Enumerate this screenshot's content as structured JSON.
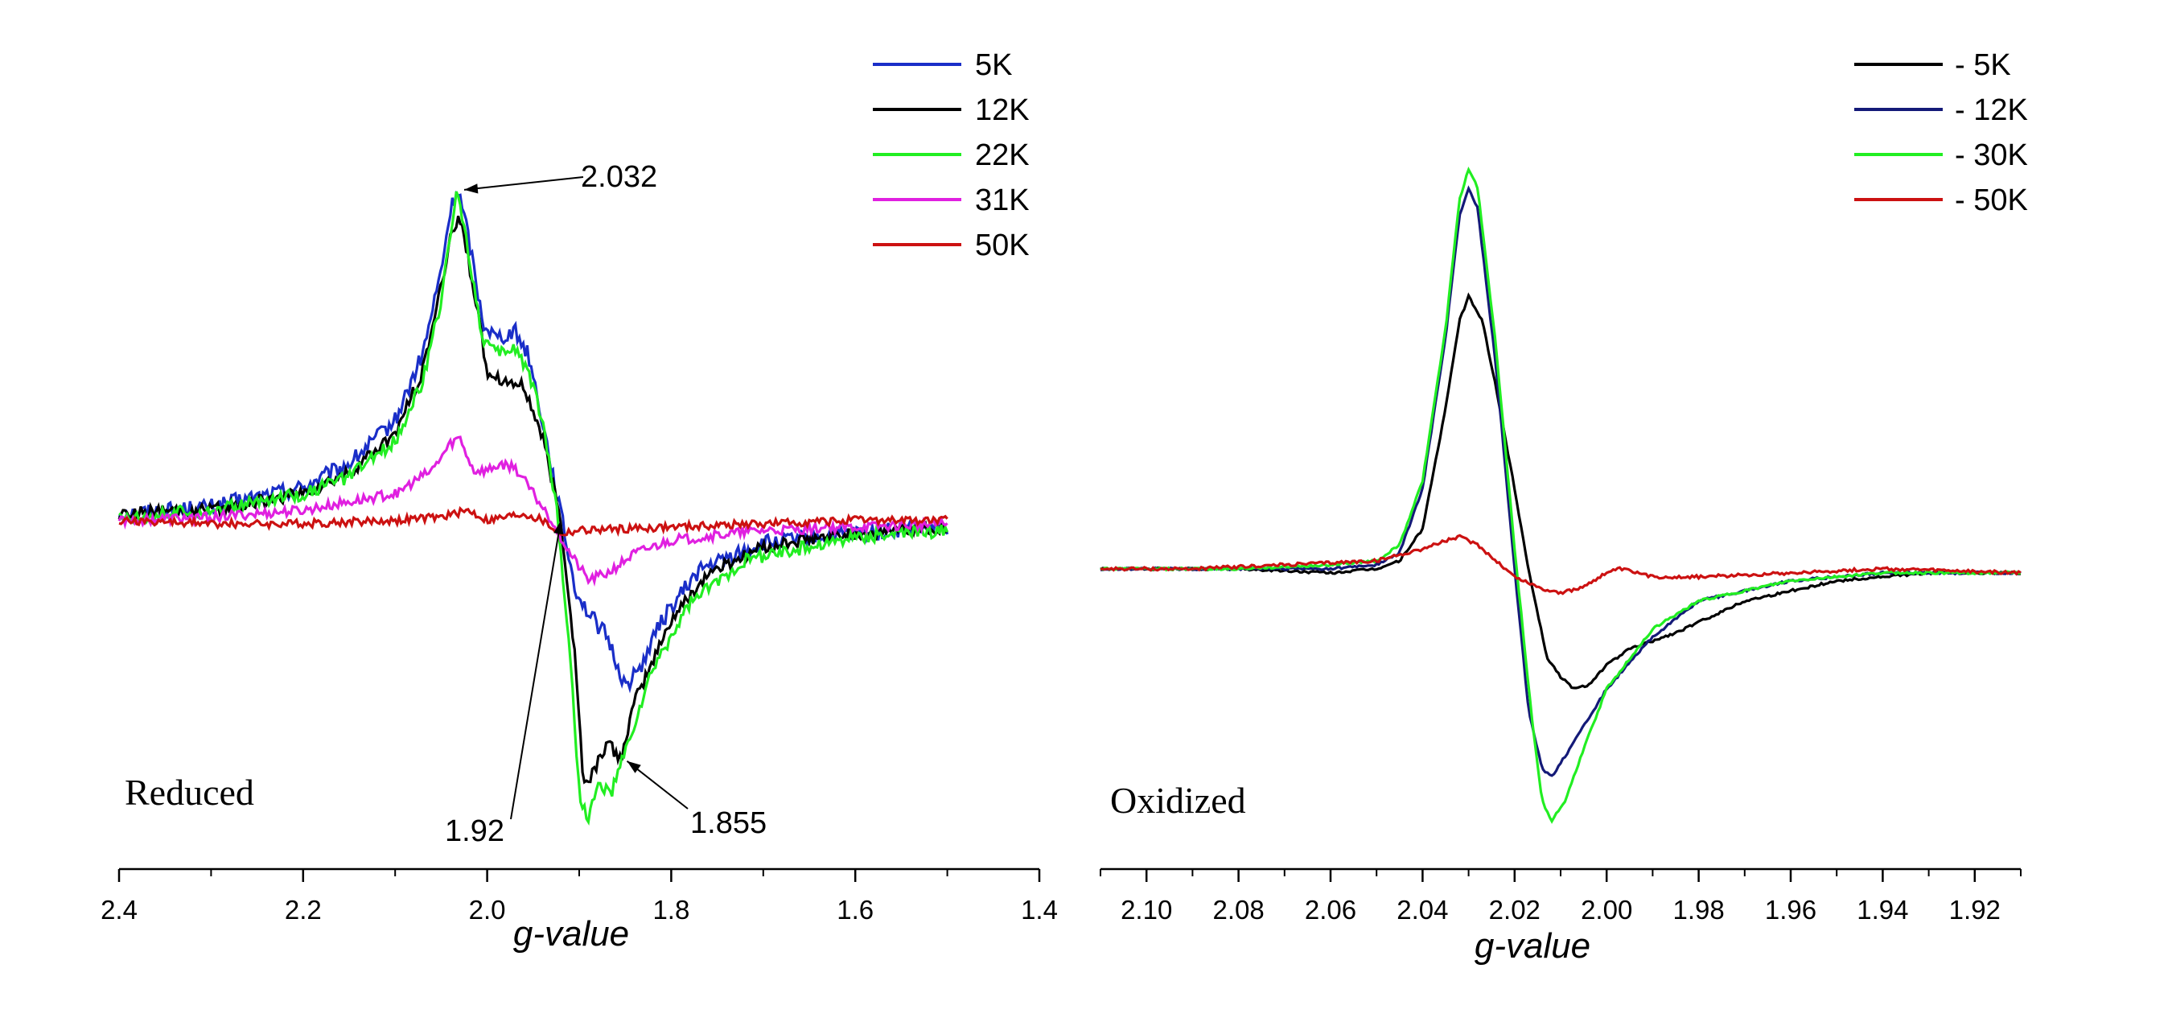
{
  "chart_data": [
    {
      "type": "line",
      "panel_label": "Reduced",
      "xlabel": "g-value",
      "ylabel": "",
      "xlim": [
        2.4,
        1.4
      ],
      "x_reversed": true,
      "xticks": [
        {
          "value": 2.4,
          "label": "2.4"
        },
        {
          "value": 2.2,
          "label": "2.2"
        },
        {
          "value": 2.0,
          "label": "2.0"
        },
        {
          "value": 1.8,
          "label": "1.8"
        },
        {
          "value": 1.6,
          "label": "1.6"
        },
        {
          "value": 1.4,
          "label": "1.4"
        }
      ],
      "ylim": [
        -1.05,
        1.3
      ],
      "grid": false,
      "legend_position": "top-right",
      "series": [
        {
          "name": "5K",
          "color": "#1a2ec8",
          "noise": 0.025,
          "points": [
            [
              2.4,
              0.02
            ],
            [
              2.3,
              0.04
            ],
            [
              2.2,
              0.1
            ],
            [
              2.15,
              0.17
            ],
            [
              2.1,
              0.3
            ],
            [
              2.07,
              0.5
            ],
            [
              2.05,
              0.75
            ],
            [
              2.04,
              0.93
            ],
            [
              2.032,
              1.0
            ],
            [
              2.02,
              0.85
            ],
            [
              2.005,
              0.6
            ],
            [
              1.99,
              0.55
            ],
            [
              1.97,
              0.57
            ],
            [
              1.955,
              0.5
            ],
            [
              1.94,
              0.3
            ],
            [
              1.92,
              0.02
            ],
            [
              1.905,
              -0.2
            ],
            [
              1.89,
              -0.28
            ],
            [
              1.87,
              -0.35
            ],
            [
              1.85,
              -0.5
            ],
            [
              1.835,
              -0.45
            ],
            [
              1.81,
              -0.3
            ],
            [
              1.77,
              -0.15
            ],
            [
              1.7,
              -0.07
            ],
            [
              1.6,
              -0.04
            ],
            [
              1.5,
              -0.02
            ]
          ]
        },
        {
          "name": "12K",
          "color": "#000000",
          "noise": 0.02,
          "points": [
            [
              2.4,
              0.02
            ],
            [
              2.3,
              0.03
            ],
            [
              2.2,
              0.08
            ],
            [
              2.15,
              0.14
            ],
            [
              2.1,
              0.26
            ],
            [
              2.07,
              0.45
            ],
            [
              2.05,
              0.7
            ],
            [
              2.04,
              0.85
            ],
            [
              2.03,
              0.92
            ],
            [
              2.015,
              0.7
            ],
            [
              2.0,
              0.45
            ],
            [
              1.98,
              0.42
            ],
            [
              1.96,
              0.4
            ],
            [
              1.94,
              0.25
            ],
            [
              1.92,
              0.0
            ],
            [
              1.905,
              -0.4
            ],
            [
              1.895,
              -0.8
            ],
            [
              1.885,
              -0.76
            ],
            [
              1.87,
              -0.67
            ],
            [
              1.855,
              -0.72
            ],
            [
              1.84,
              -0.55
            ],
            [
              1.8,
              -0.3
            ],
            [
              1.76,
              -0.16
            ],
            [
              1.7,
              -0.08
            ],
            [
              1.6,
              -0.04
            ],
            [
              1.5,
              -0.02
            ]
          ]
        },
        {
          "name": "22K",
          "color": "#22ee22",
          "noise": 0.02,
          "points": [
            [
              2.4,
              0.01
            ],
            [
              2.3,
              0.03
            ],
            [
              2.2,
              0.08
            ],
            [
              2.15,
              0.13
            ],
            [
              2.1,
              0.24
            ],
            [
              2.07,
              0.42
            ],
            [
              2.05,
              0.66
            ],
            [
              2.04,
              0.86
            ],
            [
              2.032,
              1.0
            ],
            [
              2.02,
              0.8
            ],
            [
              2.005,
              0.55
            ],
            [
              1.99,
              0.5
            ],
            [
              1.97,
              0.52
            ],
            [
              1.955,
              0.45
            ],
            [
              1.94,
              0.3
            ],
            [
              1.925,
              0.05
            ],
            [
              1.91,
              -0.4
            ],
            [
              1.9,
              -0.82
            ],
            [
              1.89,
              -0.9
            ],
            [
              1.88,
              -0.8
            ],
            [
              1.865,
              -0.82
            ],
            [
              1.85,
              -0.7
            ],
            [
              1.82,
              -0.45
            ],
            [
              1.78,
              -0.25
            ],
            [
              1.72,
              -0.12
            ],
            [
              1.6,
              -0.05
            ],
            [
              1.5,
              -0.03
            ]
          ]
        },
        {
          "name": "31K",
          "color": "#e020e0",
          "noise": 0.015,
          "points": [
            [
              2.4,
              0.0
            ],
            [
              2.3,
              0.01
            ],
            [
              2.2,
              0.03
            ],
            [
              2.1,
              0.08
            ],
            [
              2.06,
              0.15
            ],
            [
              2.04,
              0.23
            ],
            [
              2.03,
              0.25
            ],
            [
              2.015,
              0.15
            ],
            [
              2.0,
              0.15
            ],
            [
              1.985,
              0.17
            ],
            [
              1.97,
              0.16
            ],
            [
              1.95,
              0.08
            ],
            [
              1.93,
              0.0
            ],
            [
              1.91,
              -0.1
            ],
            [
              1.89,
              -0.18
            ],
            [
              1.87,
              -0.16
            ],
            [
              1.84,
              -0.1
            ],
            [
              1.8,
              -0.06
            ],
            [
              1.7,
              -0.03
            ],
            [
              1.6,
              -0.02
            ],
            [
              1.5,
              -0.01
            ]
          ]
        },
        {
          "name": "50K",
          "color": "#cc1111",
          "noise": 0.012,
          "points": [
            [
              2.4,
              0.0
            ],
            [
              2.3,
              -0.01
            ],
            [
              2.2,
              -0.01
            ],
            [
              2.1,
              0.0
            ],
            [
              2.05,
              0.01
            ],
            [
              2.02,
              0.03
            ],
            [
              2.0,
              0.0
            ],
            [
              1.98,
              0.01
            ],
            [
              1.96,
              0.02
            ],
            [
              1.94,
              0.0
            ],
            [
              1.92,
              -0.04
            ],
            [
              1.9,
              -0.03
            ],
            [
              1.8,
              -0.02
            ],
            [
              1.7,
              -0.01
            ],
            [
              1.6,
              0.0
            ],
            [
              1.5,
              0.0
            ]
          ]
        }
      ],
      "annotations": [
        {
          "label": "2.032",
          "x": 2.032,
          "y": 1.0
        },
        {
          "label": "1.92",
          "x": 1.92,
          "y": 0.0
        },
        {
          "label": "1.855",
          "x": 1.855,
          "y": -0.72
        }
      ]
    },
    {
      "type": "line",
      "panel_label": "Oxidized",
      "xlabel": "g-value",
      "ylabel": "",
      "xlim": [
        2.11,
        1.91
      ],
      "x_reversed": true,
      "xticks": [
        {
          "value": 2.1,
          "label": "2.10"
        },
        {
          "value": 2.08,
          "label": "2.08"
        },
        {
          "value": 2.06,
          "label": "2.06"
        },
        {
          "value": 2.04,
          "label": "2.04"
        },
        {
          "value": 2.02,
          "label": "2.02"
        },
        {
          "value": 2.0,
          "label": "2.00"
        },
        {
          "value": 1.98,
          "label": "1.98"
        },
        {
          "value": 1.96,
          "label": "1.96"
        },
        {
          "value": 1.94,
          "label": "1.94"
        },
        {
          "value": 1.92,
          "label": "1.92"
        }
      ],
      "ylim": [
        -0.75,
        1.2
      ],
      "grid": false,
      "legend_position": "top-right",
      "series": [
        {
          "name": "- 5K",
          "color": "#000000",
          "noise": 0.003,
          "points": [
            [
              2.11,
              0.0
            ],
            [
              2.08,
              0.0
            ],
            [
              2.06,
              -0.01
            ],
            [
              2.05,
              0.0
            ],
            [
              2.045,
              0.02
            ],
            [
              2.04,
              0.1
            ],
            [
              2.035,
              0.4
            ],
            [
              2.032,
              0.62
            ],
            [
              2.03,
              0.68
            ],
            [
              2.027,
              0.62
            ],
            [
              2.024,
              0.45
            ],
            [
              2.02,
              0.2
            ],
            [
              2.017,
              0.0
            ],
            [
              2.013,
              -0.22
            ],
            [
              2.01,
              -0.27
            ],
            [
              2.007,
              -0.3
            ],
            [
              2.004,
              -0.29
            ],
            [
              2.0,
              -0.24
            ],
            [
              1.995,
              -0.2
            ],
            [
              1.985,
              -0.16
            ],
            [
              1.97,
              -0.08
            ],
            [
              1.95,
              -0.03
            ],
            [
              1.93,
              -0.01
            ],
            [
              1.91,
              -0.01
            ]
          ]
        },
        {
          "name": "- 12K",
          "color": "#141a78",
          "noise": 0.003,
          "points": [
            [
              2.11,
              0.0
            ],
            [
              2.08,
              0.0
            ],
            [
              2.06,
              0.0
            ],
            [
              2.05,
              0.01
            ],
            [
              2.045,
              0.04
            ],
            [
              2.04,
              0.2
            ],
            [
              2.035,
              0.58
            ],
            [
              2.032,
              0.88
            ],
            [
              2.03,
              0.95
            ],
            [
              2.028,
              0.9
            ],
            [
              2.024,
              0.5
            ],
            [
              2.02,
              0.0
            ],
            [
              2.017,
              -0.35
            ],
            [
              2.014,
              -0.5
            ],
            [
              2.012,
              -0.52
            ],
            [
              2.008,
              -0.45
            ],
            [
              2.0,
              -0.3
            ],
            [
              1.99,
              -0.17
            ],
            [
              1.98,
              -0.08
            ],
            [
              1.96,
              -0.03
            ],
            [
              1.94,
              -0.01
            ],
            [
              1.91,
              -0.01
            ]
          ]
        },
        {
          "name": "- 30K",
          "color": "#22ee22",
          "noise": 0.003,
          "points": [
            [
              2.11,
              0.0
            ],
            [
              2.08,
              0.0
            ],
            [
              2.06,
              0.01
            ],
            [
              2.05,
              0.02
            ],
            [
              2.045,
              0.06
            ],
            [
              2.04,
              0.22
            ],
            [
              2.035,
              0.6
            ],
            [
              2.032,
              0.92
            ],
            [
              2.03,
              1.0
            ],
            [
              2.028,
              0.95
            ],
            [
              2.024,
              0.55
            ],
            [
              2.02,
              0.05
            ],
            [
              2.016,
              -0.4
            ],
            [
              2.014,
              -0.58
            ],
            [
              2.012,
              -0.63
            ],
            [
              2.009,
              -0.58
            ],
            [
              2.005,
              -0.45
            ],
            [
              2.0,
              -0.3
            ],
            [
              1.99,
              -0.15
            ],
            [
              1.98,
              -0.08
            ],
            [
              1.96,
              -0.03
            ],
            [
              1.94,
              -0.01
            ],
            [
              1.91,
              -0.01
            ]
          ]
        },
        {
          "name": "- 50K",
          "color": "#cc1111",
          "noise": 0.004,
          "points": [
            [
              2.11,
              0.0
            ],
            [
              2.09,
              0.0
            ],
            [
              2.07,
              0.01
            ],
            [
              2.05,
              0.02
            ],
            [
              2.04,
              0.05
            ],
            [
              2.035,
              0.07
            ],
            [
              2.032,
              0.08
            ],
            [
              2.028,
              0.06
            ],
            [
              2.024,
              0.02
            ],
            [
              2.02,
              -0.02
            ],
            [
              2.014,
              -0.05
            ],
            [
              2.01,
              -0.06
            ],
            [
              2.006,
              -0.05
            ],
            [
              2.0,
              -0.01
            ],
            [
              1.997,
              0.0
            ],
            [
              1.99,
              -0.02
            ],
            [
              1.98,
              -0.02
            ],
            [
              1.96,
              -0.01
            ],
            [
              1.94,
              0.0
            ],
            [
              1.91,
              -0.01
            ]
          ]
        }
      ],
      "annotations": []
    }
  ]
}
